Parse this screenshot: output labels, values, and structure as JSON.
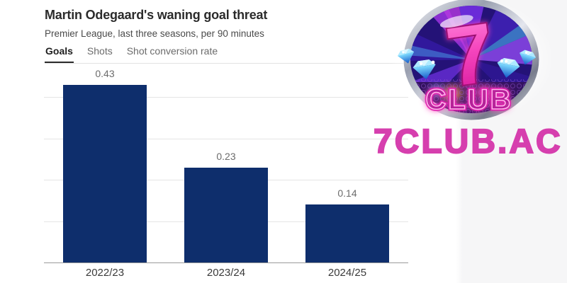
{
  "page": {
    "background": "#ffffff",
    "right_panel_color": "#f6f6f7"
  },
  "header": {
    "title": "Martin Odegaard's waning goal threat",
    "subtitle": "Premier League, last three seasons, per 90 minutes"
  },
  "tabs": [
    {
      "label": "Goals",
      "active": true
    },
    {
      "label": "Shots",
      "active": false
    },
    {
      "label": "Shot conversion rate",
      "active": false
    }
  ],
  "chart_data": {
    "type": "bar",
    "title": "Martin Odegaard's waning goal threat",
    "subtitle": "Premier League, last three seasons, per 90 minutes",
    "categories": [
      "2022/23",
      "2023/24",
      "2024/25"
    ],
    "values": [
      0.43,
      0.23,
      0.14
    ],
    "value_labels": [
      "0.43",
      "0.23",
      "0.14"
    ],
    "active_metric": "Goals",
    "xlabel": "",
    "ylabel": "",
    "ylim": [
      0,
      0.45
    ],
    "gridlines": [
      0.1,
      0.2,
      0.3,
      0.4
    ],
    "grid": true,
    "legend": false,
    "bar_color": "#0e2e6c",
    "grid_color": "#e5e5e5",
    "axis_color": "#9a9a9a"
  },
  "watermark": {
    "logo_seven": "7",
    "logo_club": "CLUB",
    "site_text": "7CLUB.AC",
    "site_color": "#d63fae"
  }
}
